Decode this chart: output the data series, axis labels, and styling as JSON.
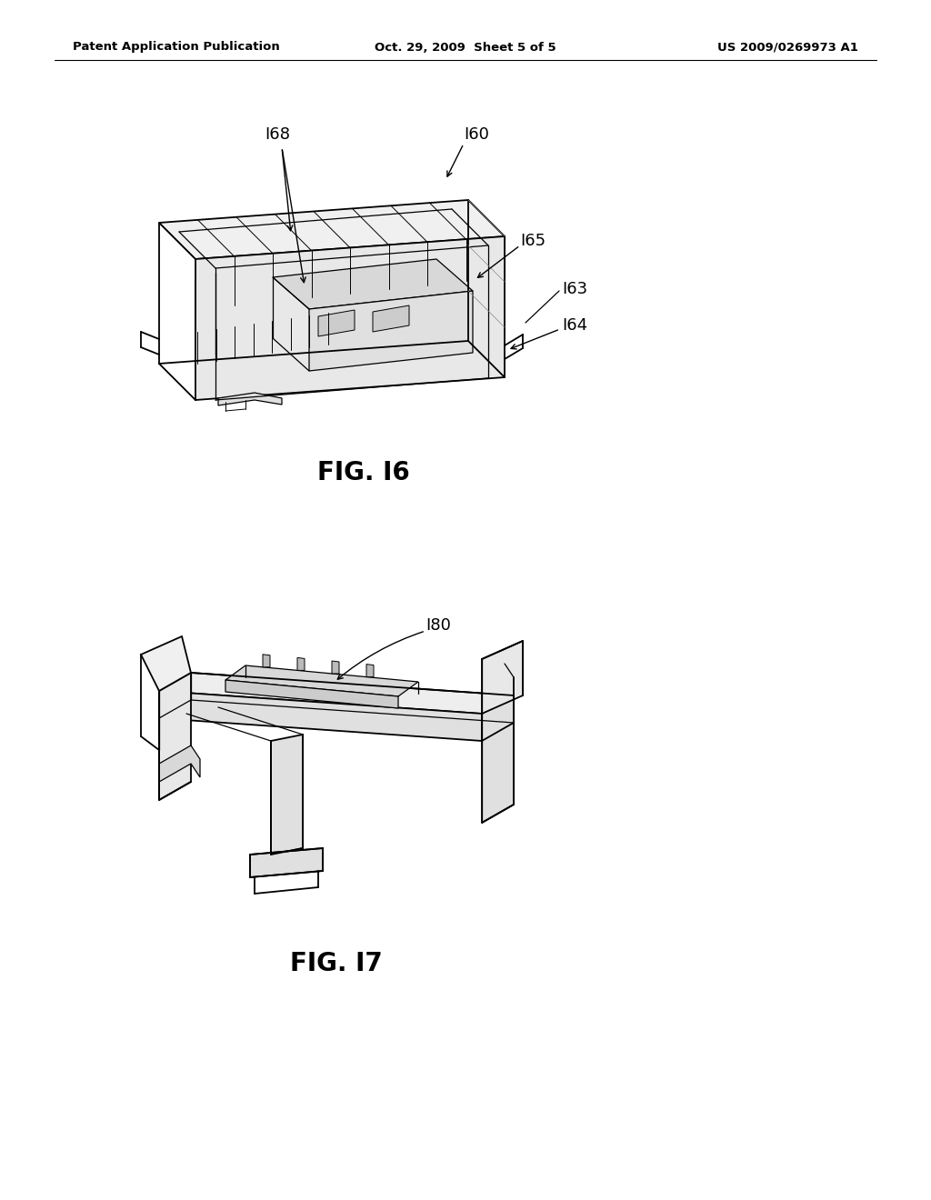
{
  "background_color": "#ffffff",
  "page_width": 10.24,
  "page_height": 13.2,
  "header": {
    "left_text": "Patent Application Publication",
    "center_text": "Oct. 29, 2009  Sheet 5 of 5",
    "right_text": "US 2009/0269973 A1",
    "font_size": 9.5
  },
  "fig16_caption": "FIG. I6",
  "fig17_caption": "FIG. I7",
  "caption_fontsize": 20
}
